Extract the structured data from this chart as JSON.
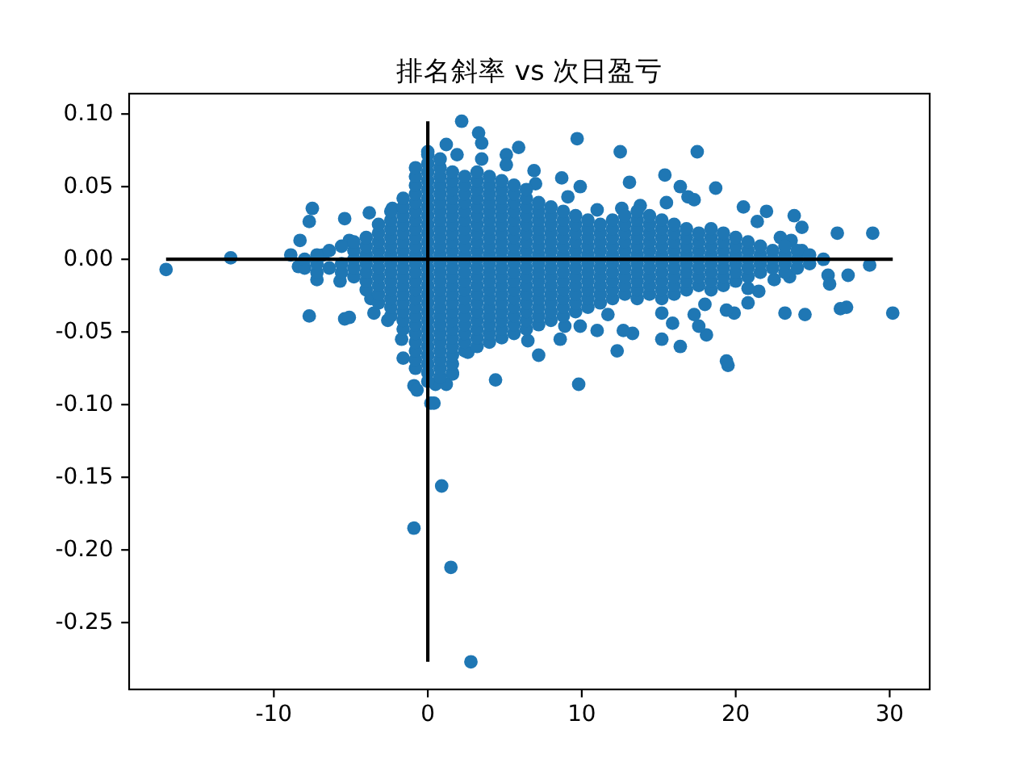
{
  "chart_data": {
    "type": "scatter",
    "title": "排名斜率 vs 次日盈亏",
    "xlim": [
      -19.4,
      32.6
    ],
    "ylim": [
      -0.296,
      0.114
    ],
    "xticks": [
      -10,
      0,
      10,
      20,
      30
    ],
    "yticks": [
      {
        "value": 0.1,
        "label": "0.10"
      },
      {
        "value": 0.05,
        "label": "0.05"
      },
      {
        "value": 0,
        "label": "0.00"
      },
      {
        "value": -0.05,
        "label": "-0.05"
      },
      {
        "value": -0.1,
        "label": "-0.10"
      },
      {
        "value": -0.15,
        "label": "-0.15"
      },
      {
        "value": -0.2,
        "label": "-0.20"
      },
      {
        "value": -0.25,
        "label": "-0.25"
      }
    ],
    "marker": "circle",
    "series": [
      {
        "color": "#1f77b4",
        "x": [
          -17.0,
          -12.8,
          -8.9,
          -8.4,
          -8.3,
          -7.7,
          -7.5,
          -7.2,
          -7.7,
          -6.8,
          -5.7,
          -5.4,
          -5.4,
          -5.1,
          -5.1,
          -3.8,
          -3.7,
          -3.5,
          -2.6,
          -2.3,
          -1.7,
          -1.6,
          -0.9,
          -0.7,
          0.0,
          0.2,
          0.5,
          1.2,
          1.6,
          2.6,
          1.2,
          1.9,
          2.2,
          3.3,
          3.5,
          3.5,
          5.1,
          5.9,
          5.1,
          6.9,
          7.0,
          8.7,
          9.1,
          9.7,
          9.9,
          11.0,
          12.5,
          12.6,
          13.1,
          13.8,
          15.4,
          15.5,
          16.4,
          16.9,
          17.3,
          17.5,
          18.7,
          20.5,
          22.0,
          21.4,
          23.8,
          24.3,
          22.9,
          23.6,
          24.3,
          25.7,
          26.6,
          28.9,
          28.7,
          27.3,
          26.0,
          26.1,
          27.2,
          26.8,
          30.2,
          24.5,
          23.2,
          23.5,
          22.5,
          21.5,
          20.8,
          20.8,
          19.9,
          19.4,
          19.5,
          19.4,
          18.1,
          18.0,
          17.6,
          17.3,
          16.4,
          15.9,
          15.2,
          15.2,
          13.3,
          12.7,
          12.3,
          11.7,
          11.0,
          9.9,
          9.8,
          8.9,
          8.6,
          7.2,
          6.5,
          4.4,
          0.4,
          0.9,
          -0.9,
          1.5,
          2.8,
          -8,
          -8,
          -7.2,
          -7.2,
          -7.2,
          -6.4,
          -6.4,
          -5.6,
          -5.6,
          -5.6,
          -4.8,
          -4.8,
          -4.8,
          -4.8,
          -4.8,
          -4,
          -4,
          -4,
          -4,
          -4,
          -4,
          -4,
          -3.2,
          -3.2,
          -3.2,
          -3.2,
          -3.2,
          -3.2,
          -3.2,
          -3.2,
          -3.2,
          -3.2,
          -2.4,
          -2.4,
          -2.4,
          -2.4,
          -2.4,
          -2.4,
          -2.4,
          -2.4,
          -2.4,
          -2.4,
          -2.4,
          -2.4,
          -2.4,
          -1.6,
          -1.6,
          -1.6,
          -1.6,
          -1.6,
          -1.6,
          -1.6,
          -1.6,
          -1.6,
          -1.6,
          -1.6,
          -1.6,
          -1.6,
          -1.6,
          -1.6,
          -1.6,
          -0.8,
          -0.8,
          -0.8,
          -0.8,
          -0.8,
          -0.8,
          -0.8,
          -0.8,
          -0.8,
          -0.8,
          -0.8,
          -0.8,
          -0.8,
          -0.8,
          -0.8,
          -0.8,
          -0.8,
          -0.8,
          -0.8,
          -0.8,
          -0.8,
          -0.8,
          -0.8,
          -0.8,
          0,
          0,
          0,
          0,
          0,
          0,
          0,
          0,
          0,
          0,
          0,
          0,
          0,
          0,
          0,
          0,
          0,
          0,
          0,
          0,
          0,
          0,
          0,
          0,
          0,
          0,
          0,
          0.8,
          0.8,
          0.8,
          0.8,
          0.8,
          0.8,
          0.8,
          0.8,
          0.8,
          0.8,
          0.8,
          0.8,
          0.8,
          0.8,
          0.8,
          0.8,
          0.8,
          0.8,
          0.8,
          0.8,
          0.8,
          0.8,
          0.8,
          0.8,
          0.8,
          0.8,
          1.6,
          1.6,
          1.6,
          1.6,
          1.6,
          1.6,
          1.6,
          1.6,
          1.6,
          1.6,
          1.6,
          1.6,
          1.6,
          1.6,
          1.6,
          1.6,
          1.6,
          1.6,
          1.6,
          1.6,
          1.6,
          1.6,
          1.6,
          1.6,
          2.4,
          2.4,
          2.4,
          2.4,
          2.4,
          2.4,
          2.4,
          2.4,
          2.4,
          2.4,
          2.4,
          2.4,
          2.4,
          2.4,
          2.4,
          2.4,
          2.4,
          2.4,
          2.4,
          2.4,
          2.4,
          3.2,
          3.2,
          3.2,
          3.2,
          3.2,
          3.2,
          3.2,
          3.2,
          3.2,
          3.2,
          3.2,
          3.2,
          3.2,
          3.2,
          3.2,
          3.2,
          3.2,
          3.2,
          3.2,
          3.2,
          3.2,
          4,
          4,
          4,
          4,
          4,
          4,
          4,
          4,
          4,
          4,
          4,
          4,
          4,
          4,
          4,
          4,
          4,
          4,
          4,
          4,
          4.8,
          4.8,
          4.8,
          4.8,
          4.8,
          4.8,
          4.8,
          4.8,
          4.8,
          4.8,
          4.8,
          4.8,
          4.8,
          4.8,
          4.8,
          4.8,
          4.8,
          4.8,
          4.8,
          5.6,
          5.6,
          5.6,
          5.6,
          5.6,
          5.6,
          5.6,
          5.6,
          5.6,
          5.6,
          5.6,
          5.6,
          5.6,
          5.6,
          5.6,
          5.6,
          5.6,
          5.6,
          6.4,
          6.4,
          6.4,
          6.4,
          6.4,
          6.4,
          6.4,
          6.4,
          6.4,
          6.4,
          6.4,
          6.4,
          6.4,
          6.4,
          6.4,
          6.4,
          6.4,
          7.2,
          7.2,
          7.2,
          7.2,
          7.2,
          7.2,
          7.2,
          7.2,
          7.2,
          7.2,
          7.2,
          7.2,
          7.2,
          7.2,
          7.2,
          8,
          8,
          8,
          8,
          8,
          8,
          8,
          8,
          8,
          8,
          8,
          8,
          8,
          8,
          8.8,
          8.8,
          8.8,
          8.8,
          8.8,
          8.8,
          8.8,
          8.8,
          8.8,
          8.8,
          8.8,
          8.8,
          8.8,
          9.6,
          9.6,
          9.6,
          9.6,
          9.6,
          9.6,
          9.6,
          9.6,
          9.6,
          9.6,
          9.6,
          9.6,
          10.4,
          10.4,
          10.4,
          10.4,
          10.4,
          10.4,
          10.4,
          10.4,
          10.4,
          10.4,
          10.4,
          11.2,
          11.2,
          11.2,
          11.2,
          11.2,
          11.2,
          11.2,
          11.2,
          11.2,
          11.2,
          12,
          12,
          12,
          12,
          12,
          12,
          12,
          12,
          12,
          12,
          12.8,
          12.8,
          12.8,
          12.8,
          12.8,
          12.8,
          12.8,
          12.8,
          12.8,
          12.8,
          13.6,
          13.6,
          13.6,
          13.6,
          13.6,
          13.6,
          13.6,
          13.6,
          13.6,
          13.6,
          13.6,
          14.4,
          14.4,
          14.4,
          14.4,
          14.4,
          14.4,
          14.4,
          14.4,
          14.4,
          14.4,
          15.2,
          15.2,
          15.2,
          15.2,
          15.2,
          15.2,
          15.2,
          15.2,
          15.2,
          15.2,
          16,
          16,
          16,
          16,
          16,
          16,
          16,
          16,
          16,
          16.8,
          16.8,
          16.8,
          16.8,
          16.8,
          16.8,
          16.8,
          16.8,
          17.6,
          17.6,
          17.6,
          17.6,
          17.6,
          17.6,
          17.6,
          18.4,
          18.4,
          18.4,
          18.4,
          18.4,
          18.4,
          18.4,
          18.4,
          19.2,
          19.2,
          19.2,
          19.2,
          19.2,
          19.2,
          19.2,
          20,
          20,
          20,
          20,
          20,
          20,
          20.8,
          20.8,
          20.8,
          20.8,
          20.8,
          21.6,
          21.6,
          21.6,
          21.6,
          22.4,
          22.4,
          22.4,
          23.2,
          23.2,
          23.2,
          23.2,
          24,
          24,
          24,
          24.8,
          24.8
        ],
        "values": [
          -0.007,
          0.001,
          0.003,
          -0.005,
          0.013,
          0.026,
          0.035,
          -0.014,
          -0.039,
          0.003,
          -0.015,
          0.028,
          -0.041,
          -0.04,
          0.013,
          0.032,
          -0.027,
          -0.037,
          -0.042,
          0.035,
          -0.055,
          -0.068,
          -0.087,
          -0.09,
          0.074,
          -0.099,
          -0.086,
          -0.086,
          -0.079,
          -0.064,
          0.079,
          0.072,
          0.095,
          0.087,
          0.08,
          0.069,
          0.072,
          0.077,
          0.065,
          0.061,
          0.052,
          0.056,
          0.043,
          0.083,
          0.05,
          0.034,
          0.074,
          0.035,
          0.053,
          0.037,
          0.058,
          0.039,
          0.05,
          0.043,
          0.041,
          0.074,
          0.049,
          0.036,
          0.033,
          0.026,
          0.03,
          0.022,
          0.015,
          0.013,
          0.006,
          0.0,
          0.018,
          0.018,
          -0.004,
          -0.011,
          -0.011,
          -0.017,
          -0.033,
          -0.034,
          -0.037,
          -0.038,
          -0.037,
          -0.012,
          -0.014,
          -0.022,
          -0.02,
          -0.03,
          -0.037,
          -0.035,
          -0.073,
          -0.07,
          -0.052,
          -0.031,
          -0.046,
          -0.038,
          -0.06,
          -0.044,
          -0.055,
          -0.037,
          -0.051,
          -0.049,
          -0.063,
          -0.038,
          -0.049,
          -0.046,
          -0.086,
          -0.046,
          -0.055,
          -0.066,
          -0.056,
          -0.083,
          -0.099,
          -0.156,
          -0.185,
          -0.212,
          -0.277,
          -0.006,
          0,
          -0.009,
          -0.003,
          0.003,
          -0.006,
          0.006,
          -0.009,
          -0.003,
          0.009,
          -0.012,
          -0.006,
          0,
          0.006,
          0.012,
          -0.021,
          -0.015,
          -0.009,
          -0.003,
          0.003,
          0.009,
          0.015,
          -0.03,
          -0.024,
          -0.018,
          -0.012,
          -0.006,
          0,
          0.006,
          0.012,
          0.018,
          0.024,
          -0.039,
          -0.033,
          -0.027,
          -0.021,
          -0.015,
          -0.009,
          -0.003,
          0.003,
          0.009,
          0.015,
          0.021,
          0.027,
          0.033,
          -0.048,
          -0.042,
          -0.036,
          -0.03,
          -0.024,
          -0.018,
          -0.012,
          -0.006,
          0,
          0.006,
          0.012,
          0.018,
          0.024,
          0.03,
          0.036,
          0.042,
          -0.075,
          -0.069,
          -0.063,
          -0.057,
          -0.051,
          -0.045,
          -0.039,
          -0.033,
          -0.027,
          -0.021,
          -0.015,
          -0.009,
          -0.003,
          0.003,
          0.009,
          0.015,
          0.021,
          0.027,
          0.033,
          0.039,
          0.045,
          0.051,
          0.057,
          0.063,
          -0.084,
          -0.078,
          -0.072,
          -0.066,
          -0.06,
          -0.054,
          -0.048,
          -0.042,
          -0.036,
          -0.03,
          -0.024,
          -0.018,
          -0.012,
          -0.006,
          0,
          0.006,
          0.012,
          0.018,
          0.024,
          0.03,
          0.036,
          0.042,
          0.048,
          0.054,
          0.06,
          0.066,
          0.072,
          -0.081,
          -0.075,
          -0.069,
          -0.063,
          -0.057,
          -0.051,
          -0.045,
          -0.039,
          -0.033,
          -0.027,
          -0.021,
          -0.015,
          -0.009,
          -0.003,
          0.003,
          0.009,
          0.015,
          0.021,
          0.027,
          0.033,
          0.039,
          0.045,
          0.051,
          0.057,
          0.063,
          0.069,
          -0.078,
          -0.072,
          -0.066,
          -0.06,
          -0.054,
          -0.048,
          -0.042,
          -0.036,
          -0.03,
          -0.024,
          -0.018,
          -0.012,
          -0.006,
          0,
          0.006,
          0.012,
          0.018,
          0.024,
          0.03,
          0.036,
          0.042,
          0.048,
          0.054,
          0.06,
          -0.063,
          -0.057,
          -0.051,
          -0.045,
          -0.039,
          -0.033,
          -0.027,
          -0.021,
          -0.015,
          -0.009,
          -0.003,
          0.003,
          0.009,
          0.015,
          0.021,
          0.027,
          0.033,
          0.039,
          0.045,
          0.051,
          0.057,
          -0.06,
          -0.054,
          -0.048,
          -0.042,
          -0.036,
          -0.03,
          -0.024,
          -0.018,
          -0.012,
          -0.006,
          0,
          0.006,
          0.012,
          0.018,
          0.024,
          0.03,
          0.036,
          0.042,
          0.048,
          0.054,
          0.06,
          -0.057,
          -0.051,
          -0.045,
          -0.039,
          -0.033,
          -0.027,
          -0.021,
          -0.015,
          -0.009,
          -0.003,
          0.003,
          0.009,
          0.015,
          0.021,
          0.027,
          0.033,
          0.039,
          0.045,
          0.051,
          0.057,
          -0.054,
          -0.048,
          -0.042,
          -0.036,
          -0.03,
          -0.024,
          -0.018,
          -0.012,
          -0.006,
          0,
          0.006,
          0.012,
          0.018,
          0.024,
          0.03,
          0.036,
          0.042,
          0.048,
          0.054,
          -0.051,
          -0.045,
          -0.039,
          -0.033,
          -0.027,
          -0.021,
          -0.015,
          -0.009,
          -0.003,
          0.003,
          0.009,
          0.015,
          0.021,
          0.027,
          0.033,
          0.039,
          0.045,
          0.051,
          -0.048,
          -0.042,
          -0.036,
          -0.03,
          -0.024,
          -0.018,
          -0.012,
          -0.006,
          0,
          0.006,
          0.012,
          0.018,
          0.024,
          0.03,
          0.036,
          0.042,
          0.048,
          -0.045,
          -0.039,
          -0.033,
          -0.027,
          -0.021,
          -0.015,
          -0.009,
          -0.003,
          0.003,
          0.009,
          0.015,
          0.021,
          0.027,
          0.033,
          0.039,
          -0.042,
          -0.036,
          -0.03,
          -0.024,
          -0.018,
          -0.012,
          -0.006,
          0,
          0.006,
          0.012,
          0.018,
          0.024,
          0.03,
          0.036,
          -0.039,
          -0.033,
          -0.027,
          -0.021,
          -0.015,
          -0.009,
          -0.003,
          0.003,
          0.009,
          0.015,
          0.021,
          0.027,
          0.033,
          -0.036,
          -0.03,
          -0.024,
          -0.018,
          -0.012,
          -0.006,
          0,
          0.006,
          0.012,
          0.018,
          0.024,
          0.03,
          -0.033,
          -0.027,
          -0.021,
          -0.015,
          -0.009,
          -0.003,
          0.003,
          0.009,
          0.015,
          0.021,
          0.027,
          -0.03,
          -0.024,
          -0.018,
          -0.012,
          -0.006,
          0,
          0.006,
          0.012,
          0.018,
          0.024,
          -0.027,
          -0.021,
          -0.015,
          -0.009,
          -0.003,
          0.003,
          0.009,
          0.015,
          0.021,
          0.027,
          -0.024,
          -0.018,
          -0.012,
          -0.006,
          0,
          0.006,
          0.012,
          0.018,
          0.024,
          0.03,
          -0.027,
          -0.021,
          -0.015,
          -0.009,
          -0.003,
          0.003,
          0.009,
          0.015,
          0.021,
          0.027,
          0.033,
          -0.024,
          -0.018,
          -0.012,
          -0.006,
          0,
          0.006,
          0.012,
          0.018,
          0.024,
          0.03,
          -0.027,
          -0.021,
          -0.015,
          -0.009,
          -0.003,
          0.003,
          0.009,
          0.015,
          0.021,
          0.027,
          -0.024,
          -0.018,
          -0.012,
          -0.006,
          0,
          0.006,
          0.012,
          0.018,
          0.024,
          -0.021,
          -0.015,
          -0.009,
          -0.003,
          0.003,
          0.009,
          0.015,
          0.021,
          -0.018,
          -0.012,
          -0.006,
          0,
          0.006,
          0.012,
          0.018,
          -0.021,
          -0.015,
          -0.009,
          -0.003,
          0.003,
          0.009,
          0.015,
          0.021,
          -0.018,
          -0.012,
          -0.006,
          0,
          0.006,
          0.012,
          0.018,
          -0.015,
          -0.009,
          -0.003,
          0.003,
          0.009,
          0.015,
          -0.012,
          -0.006,
          0,
          0.006,
          0.012,
          -0.009,
          -0.003,
          0.003,
          0.009,
          -0.006,
          0,
          0.006,
          -0.009,
          -0.003,
          0.003,
          0.009,
          -0.006,
          0,
          0.006,
          -0.003,
          0.003
        ]
      },
      {
        "type": "line",
        "color": "#000000",
        "marker": "none",
        "x": [
          -17.0,
          30.2
        ],
        "values": [
          0,
          0
        ]
      },
      {
        "type": "line",
        "color": "#000000",
        "marker": "none",
        "x": [
          0,
          0
        ],
        "values": [
          -0.277,
          0.095
        ]
      }
    ]
  }
}
